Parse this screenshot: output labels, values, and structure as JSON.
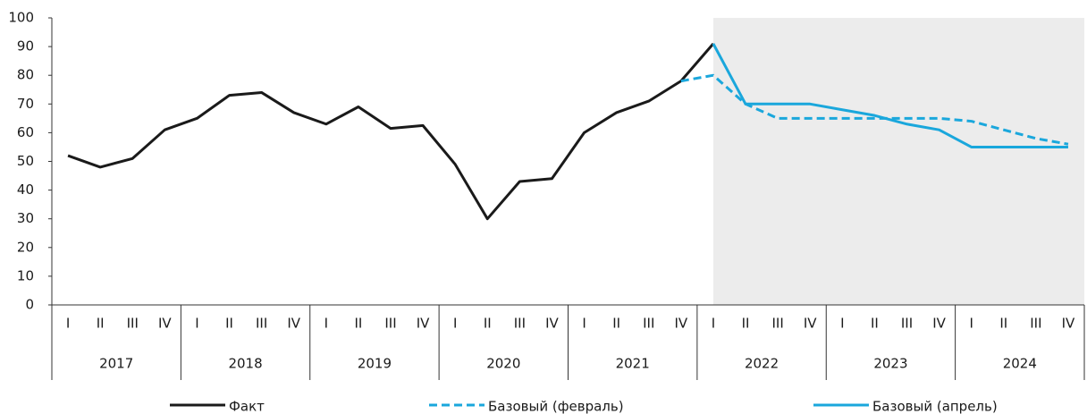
{
  "chart_data": {
    "type": "line",
    "categories": [
      "I",
      "II",
      "III",
      "IV",
      "I",
      "II",
      "III",
      "IV",
      "I",
      "II",
      "III",
      "IV",
      "I",
      "II",
      "III",
      "IV",
      "I",
      "II",
      "III",
      "IV",
      "I",
      "II",
      "III",
      "IV",
      "I",
      "II",
      "III",
      "IV",
      "I",
      "II",
      "III",
      "IV"
    ],
    "years": [
      "2017",
      "2018",
      "2019",
      "2020",
      "2021",
      "2022",
      "2023",
      "2024"
    ],
    "ylim": [
      0,
      100
    ],
    "yticks": [
      0,
      10,
      20,
      30,
      40,
      50,
      60,
      70,
      80,
      90,
      100
    ],
    "shade_from": "2022",
    "series": [
      {
        "name": "Факт",
        "color": "#1a1a1a",
        "dash": false,
        "values": [
          52,
          48,
          51,
          61,
          65,
          73,
          74,
          67,
          63,
          69,
          61.5,
          62.5,
          49,
          30,
          43,
          44,
          60,
          67,
          71,
          78,
          91,
          null,
          null,
          null,
          null,
          null,
          null,
          null,
          null,
          null,
          null,
          null
        ]
      },
      {
        "name": "Базовый (февраль)",
        "color": "#1aa7dc",
        "dash": true,
        "values": [
          null,
          null,
          null,
          null,
          null,
          null,
          null,
          null,
          null,
          null,
          null,
          null,
          null,
          null,
          null,
          null,
          null,
          null,
          null,
          78,
          80,
          70,
          65,
          65,
          65,
          65,
          65,
          65,
          64,
          61,
          58,
          56
        ]
      },
      {
        "name": "Базовый (апрель)",
        "color": "#1aa7dc",
        "dash": false,
        "values": [
          null,
          null,
          null,
          null,
          null,
          null,
          null,
          null,
          null,
          null,
          null,
          null,
          null,
          null,
          null,
          null,
          null,
          null,
          null,
          null,
          91,
          70,
          70,
          70,
          68,
          66,
          63,
          61,
          55,
          55,
          55,
          55
        ]
      }
    ]
  }
}
